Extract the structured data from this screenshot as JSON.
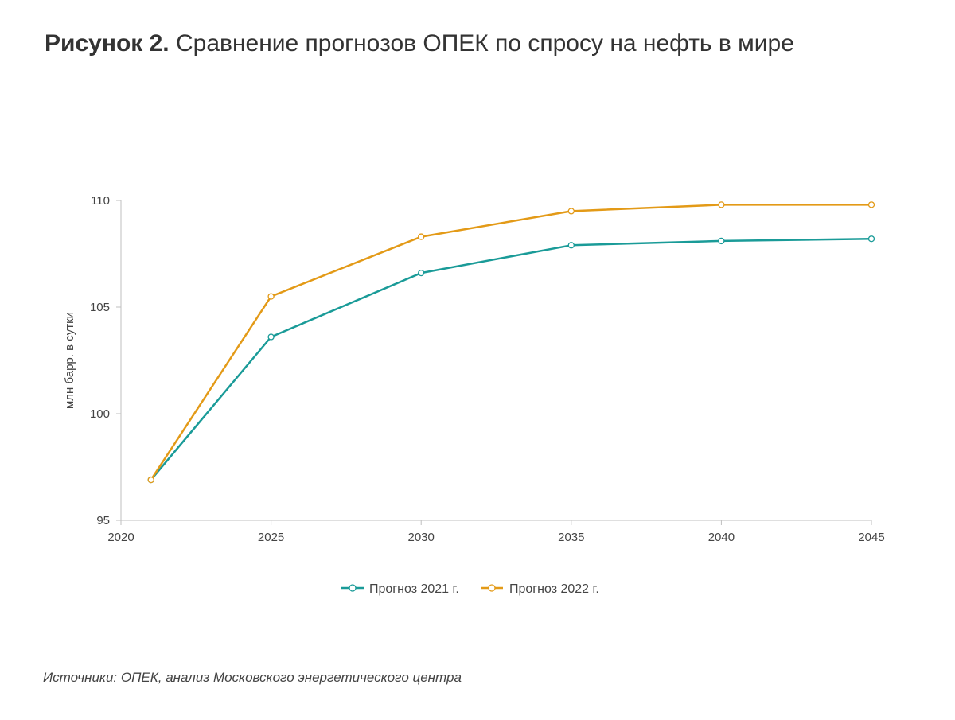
{
  "title": {
    "bold": "Рисунок 2.",
    "text": "Сравнение прогнозов ОПЕК по спросу на нефть в мире"
  },
  "source": "Источники: ОПЕК, анализ Московского энергетического центра",
  "chart_data": {
    "type": "line",
    "title": "Рисунок 2. Сравнение прогнозов ОПЕК по спросу на нефть в мире",
    "xlabel": "",
    "ylabel": "млн барр. в сутки",
    "xlim": [
      2020,
      2045
    ],
    "ylim": [
      95,
      110
    ],
    "x_ticks": [
      "2020",
      "2025",
      "2030",
      "2035",
      "2040",
      "2045"
    ],
    "y_ticks": [
      "95",
      "100",
      "105",
      "110"
    ],
    "grid": false,
    "legend_position": "bottom",
    "series": [
      {
        "name": "Прогноз 2021 г.",
        "color": "#1a9b98",
        "x": [
          2021,
          2025,
          2030,
          2035,
          2040,
          2045
        ],
        "values": [
          96.9,
          103.6,
          106.6,
          107.9,
          108.1,
          108.2
        ]
      },
      {
        "name": "Прогноз 2022 г.",
        "color": "#e39a17",
        "x": [
          2021,
          2025,
          2030,
          2035,
          2040,
          2045
        ],
        "values": [
          96.9,
          105.5,
          108.3,
          109.5,
          109.8,
          109.8
        ]
      }
    ]
  }
}
